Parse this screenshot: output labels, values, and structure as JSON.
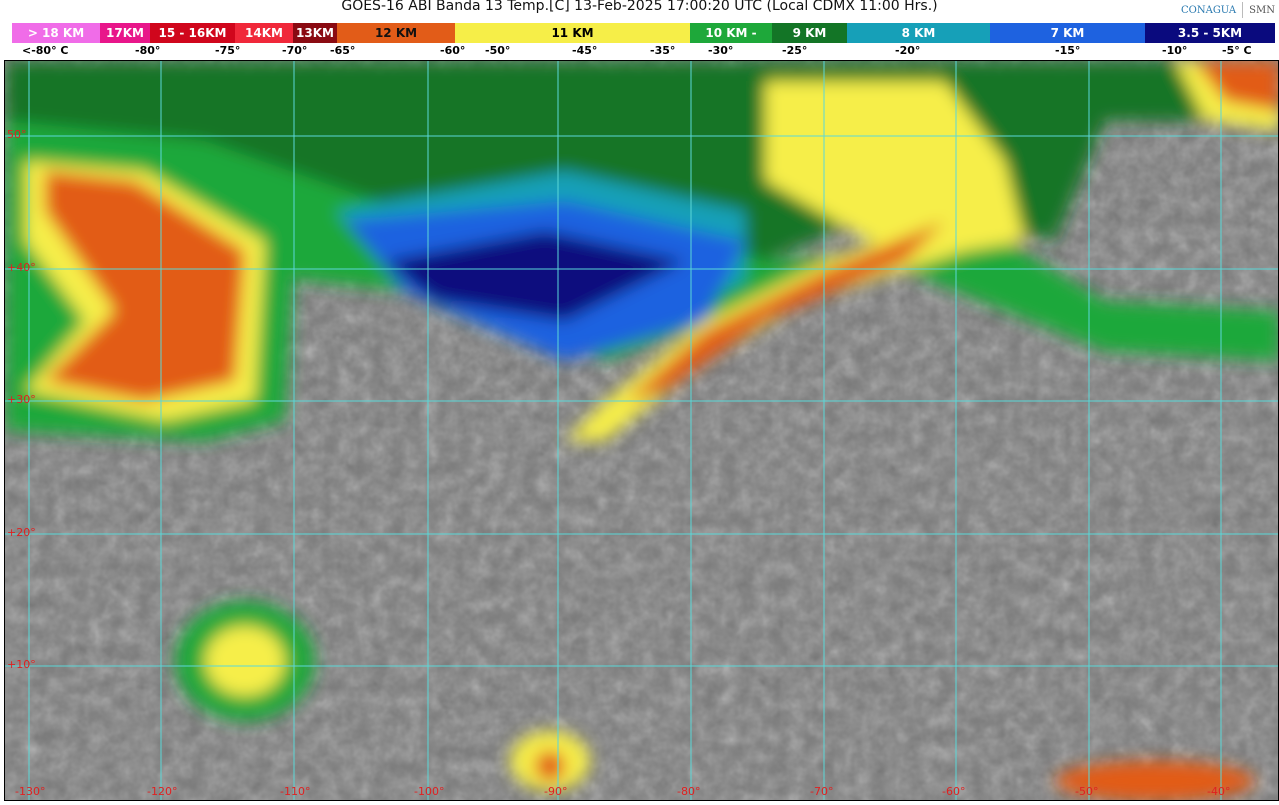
{
  "title": "GOES-16 ABI Banda 13 Temp.[C] 13-Feb-2025 17:00:20 UTC (Local CDMX  11:00 Hrs.)",
  "logos": [
    "CONAGUA",
    "SMN"
  ],
  "legend": [
    {
      "label": "> 18 KM",
      "color": "#f06ce8"
    },
    {
      "label": "17KM",
      "color": "#e8168a"
    },
    {
      "label": "15 - 16KM",
      "color": "#d0061c"
    },
    {
      "label": "14KM",
      "color": "#f0283a"
    },
    {
      "label": "13KM",
      "color": "#8a0a12"
    },
    {
      "label": "12 KM",
      "color": "#e25c18"
    },
    {
      "label": "11 KM",
      "color": "#f6ee48"
    },
    {
      "label": "10 KM -",
      "color": "#1ea83a"
    },
    {
      "label": "9 KM",
      "color": "#137526"
    },
    {
      "label": "8 KM",
      "color": "#16a0b8"
    },
    {
      "label": "7 KM",
      "color": "#1e62e0"
    },
    {
      "label": "3.5 - 5KM",
      "color": "#0a0a7e"
    }
  ],
  "temperatures": [
    "<-80° C",
    "-80°",
    "-75°",
    "-70°",
    "-65°",
    "-60°",
    "-50°",
    "-45°",
    "-35°",
    "-30°",
    "-25°",
    "-20°",
    "-15°",
    "-10°",
    "-5°  C"
  ],
  "latitudes": [
    "50°",
    "+40°",
    "+30°",
    "+20°",
    "+10°"
  ],
  "longitudes": [
    "-130°",
    "-120°",
    "-110°",
    "-100°",
    "-90°",
    "-80°",
    "-70°",
    "-60°",
    "-50°",
    "-40°"
  ]
}
